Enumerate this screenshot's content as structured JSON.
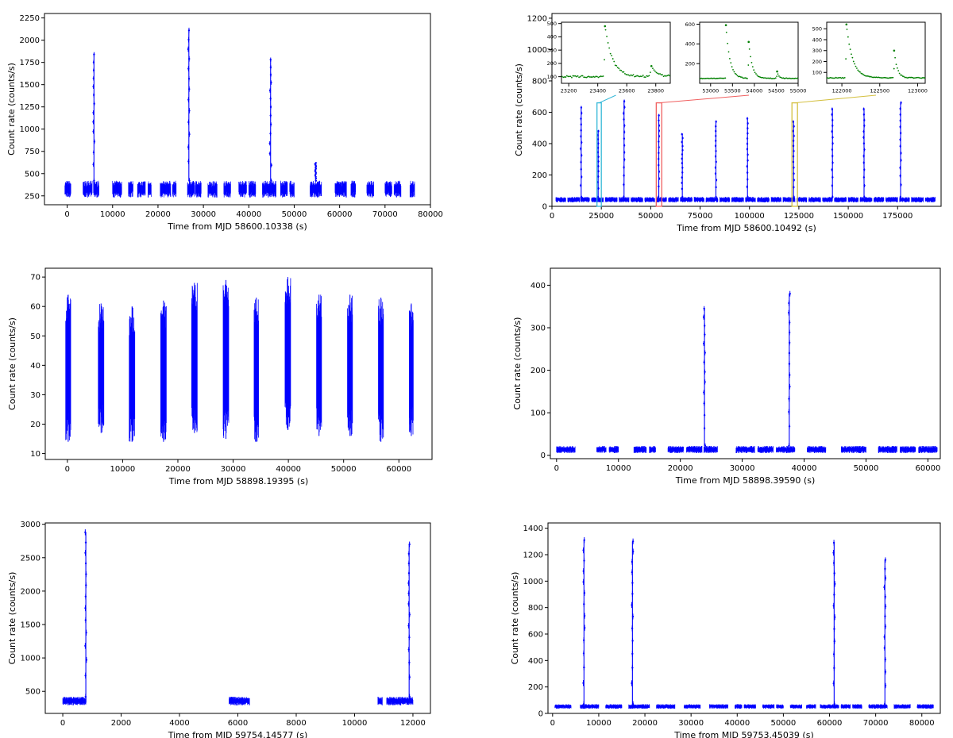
{
  "figure": {
    "panel_count": 6
  },
  "style": {
    "series_color": "#0000ff",
    "inset_color": "#008000",
    "axes_color": "#000000",
    "box_colors": [
      "#35b8d8",
      "#f06060",
      "#d4c040"
    ]
  },
  "chart_data": [
    {
      "id": "p1",
      "type": "scatter",
      "title": "",
      "xlabel": "Time from MJD 58600.10338 (s)",
      "ylabel": "Count rate (counts/s)",
      "xlim": [
        -5000,
        80000
      ],
      "ylim": [
        150,
        2300
      ],
      "xticks": [
        0,
        10000,
        20000,
        30000,
        40000,
        50000,
        60000,
        70000,
        80000
      ],
      "yticks": [
        250,
        500,
        750,
        1000,
        1250,
        1500,
        1750,
        2000,
        2250
      ],
      "segments": [
        [
          -500,
          800
        ],
        [
          3500,
          5500
        ],
        [
          5800,
          7000
        ],
        [
          10000,
          12000
        ],
        [
          13500,
          14500
        ],
        [
          15500,
          17200
        ],
        [
          17800,
          18500
        ],
        [
          20500,
          22800
        ],
        [
          23200,
          24000
        ],
        [
          26500,
          28000
        ],
        [
          28200,
          29500
        ],
        [
          31000,
          33000
        ],
        [
          34500,
          36000
        ],
        [
          37800,
          39500
        ],
        [
          40000,
          41500
        ],
        [
          43000,
          46000
        ],
        [
          47000,
          48500
        ],
        [
          49000,
          50000
        ],
        [
          53500,
          56000
        ],
        [
          59000,
          61500
        ],
        [
          62500,
          63500
        ],
        [
          66000,
          67500
        ],
        [
          70000,
          71500
        ],
        [
          72000,
          73500
        ],
        [
          75500,
          76500
        ]
      ],
      "base": {
        "low": 230,
        "high": 420
      },
      "flares": [
        {
          "t": 5900,
          "peak": 1840,
          "width": 500
        },
        {
          "t": 26800,
          "peak": 2110,
          "width": 500
        },
        {
          "t": 44800,
          "peak": 1780,
          "width": 600
        },
        {
          "t": 54700,
          "peak": 620,
          "width": 400
        }
      ]
    },
    {
      "id": "p2",
      "type": "scatter",
      "title": "",
      "xlabel": "Time from MJD 58600.10492 (s)",
      "ylabel": "Count rate (counts/s)",
      "xlim": [
        0,
        197000
      ],
      "ylim": [
        0,
        1230
      ],
      "xticks": [
        0,
        25000,
        50000,
        75000,
        100000,
        125000,
        150000,
        175000
      ],
      "yticks": [
        0,
        200,
        400,
        600,
        800,
        1000,
        1200
      ],
      "segments": [
        [
          2000,
          7000
        ],
        [
          8000,
          14000
        ],
        [
          14500,
          19000
        ],
        [
          20000,
          26000
        ],
        [
          27000,
          33000
        ],
        [
          34000,
          39000
        ],
        [
          40000,
          46000
        ],
        [
          47000,
          52000
        ],
        [
          53000,
          58000
        ],
        [
          59000,
          64000
        ],
        [
          65000,
          71000
        ],
        [
          72000,
          77000
        ],
        [
          78000,
          84000
        ],
        [
          85000,
          90000
        ],
        [
          91000,
          97000
        ],
        [
          98000,
          103000
        ],
        [
          104000,
          110000
        ],
        [
          111000,
          116000
        ],
        [
          117000,
          123000
        ],
        [
          124000,
          129000
        ],
        [
          130000,
          136000
        ],
        [
          137000,
          142000
        ],
        [
          143000,
          149000
        ],
        [
          150000,
          155000
        ],
        [
          156000,
          162000
        ],
        [
          163000,
          168000
        ],
        [
          169000,
          175000
        ],
        [
          176000,
          181000
        ],
        [
          182000,
          188000
        ],
        [
          189000,
          194000
        ]
      ],
      "base": {
        "low": 25,
        "high": 60
      },
      "flares": [
        {
          "t": 14800,
          "peak": 630,
          "width": 700
        },
        {
          "t": 23400,
          "peak": 480,
          "width": 600
        },
        {
          "t": 36500,
          "peak": 670,
          "width": 700
        },
        {
          "t": 54100,
          "peak": 580,
          "width": 700
        },
        {
          "t": 66000,
          "peak": 460,
          "width": 600
        },
        {
          "t": 83000,
          "peak": 540,
          "width": 600
        },
        {
          "t": 99000,
          "peak": 560,
          "width": 600
        },
        {
          "t": 122300,
          "peak": 540,
          "width": 700
        },
        {
          "t": 142000,
          "peak": 620,
          "width": 600
        },
        {
          "t": 158000,
          "peak": 620,
          "width": 600
        },
        {
          "t": 176500,
          "peak": 660,
          "width": 700
        }
      ],
      "highlight_boxes": [
        {
          "x": [
            22800,
            25000
          ],
          "y": [
            0,
            660
          ]
        },
        {
          "x": [
            52800,
            55600
          ],
          "y": [
            0,
            660
          ]
        },
        {
          "x": [
            121500,
            124300
          ],
          "y": [
            0,
            660
          ]
        }
      ],
      "insets": [
        {
          "xlim": [
            23150,
            23900
          ],
          "ylim": [
            50,
            510
          ],
          "xticks": [
            23200,
            23400,
            23600,
            23800
          ],
          "yticks": [
            100,
            200,
            300,
            400,
            500
          ],
          "base": 100,
          "flares": [
            {
              "t": 23450,
              "peak": 480,
              "decay": 50
            },
            {
              "t": 23770,
              "peak": 180,
              "decay": 40
            }
          ]
        },
        {
          "xlim": [
            52750,
            55000
          ],
          "ylim": [
            0,
            620
          ],
          "xticks": [
            53000,
            53500,
            54000,
            54500,
            55000
          ],
          "yticks": [
            200,
            400,
            600
          ],
          "base": 50,
          "flares": [
            {
              "t": 53350,
              "peak": 590,
              "decay": 90
            },
            {
              "t": 53870,
              "peak": 420,
              "decay": 80
            },
            {
              "t": 54520,
              "peak": 120,
              "decay": 40
            }
          ]
        },
        {
          "xlim": [
            121800,
            123100
          ],
          "ylim": [
            0,
            560
          ],
          "xticks": [
            122000,
            122500,
            123000
          ],
          "yticks": [
            100,
            200,
            300,
            400,
            500
          ],
          "base": 50,
          "flares": [
            {
              "t": 122060,
              "peak": 540,
              "decay": 80
            },
            {
              "t": 122690,
              "peak": 300,
              "decay": 40
            }
          ]
        }
      ]
    },
    {
      "id": "p3",
      "type": "scatter",
      "title": "",
      "xlabel": "Time from MJD 58898.19395 (s)",
      "ylabel": "Count rate (counts/s)",
      "xlim": [
        -4000,
        66000
      ],
      "ylim": [
        8,
        73
      ],
      "xticks": [
        0,
        10000,
        20000,
        30000,
        40000,
        50000,
        60000
      ],
      "yticks": [
        10,
        20,
        30,
        40,
        50,
        60,
        70
      ],
      "bands": [
        {
          "x": [
            -300,
            600
          ],
          "low": 14,
          "high": 64
        },
        {
          "x": [
            5600,
            6600
          ],
          "low": 17,
          "high": 61
        },
        {
          "x": [
            11200,
            12200
          ],
          "low": 14,
          "high": 60
        },
        {
          "x": [
            16900,
            17900
          ],
          "low": 14,
          "high": 62
        },
        {
          "x": [
            22500,
            23500
          ],
          "low": 17,
          "high": 68
        },
        {
          "x": [
            28200,
            29200
          ],
          "low": 15,
          "high": 69
        },
        {
          "x": [
            33800,
            34600
          ],
          "low": 14,
          "high": 63
        },
        {
          "x": [
            39400,
            40400
          ],
          "low": 18,
          "high": 70
        },
        {
          "x": [
            45100,
            46000
          ],
          "low": 16,
          "high": 64
        },
        {
          "x": [
            50700,
            51600
          ],
          "low": 16,
          "high": 64
        },
        {
          "x": [
            56300,
            57200
          ],
          "low": 14,
          "high": 63
        },
        {
          "x": [
            61900,
            62600
          ],
          "low": 16,
          "high": 61
        }
      ]
    },
    {
      "id": "p4",
      "type": "scatter",
      "title": "",
      "xlabel": "Time from MJD 58898.39590 (s)",
      "ylabel": "Count rate (counts/s)",
      "xlim": [
        -1000,
        62000
      ],
      "ylim": [
        -8,
        440
      ],
      "xticks": [
        0,
        10000,
        20000,
        30000,
        40000,
        50000,
        60000
      ],
      "yticks": [
        0,
        100,
        200,
        300,
        400
      ],
      "segments": [
        [
          0,
          3000
        ],
        [
          6500,
          8000
        ],
        [
          8500,
          10000
        ],
        [
          12500,
          14500
        ],
        [
          15000,
          16000
        ],
        [
          18000,
          20500
        ],
        [
          21000,
          23500
        ],
        [
          23800,
          26000
        ],
        [
          29000,
          32000
        ],
        [
          32500,
          35000
        ],
        [
          35500,
          38500
        ],
        [
          40500,
          43500
        ],
        [
          46000,
          50000
        ],
        [
          52000,
          55000
        ],
        [
          55500,
          58000
        ],
        [
          58500,
          61500
        ]
      ],
      "base": {
        "low": 5,
        "high": 22
      },
      "flares": [
        {
          "t": 23900,
          "peak": 345,
          "width": 400
        },
        {
          "t": 37600,
          "peak": 380,
          "width": 400
        }
      ]
    },
    {
      "id": "p5",
      "type": "scatter",
      "title": "",
      "xlabel": "Time from MJD 59754.14577 (s)",
      "ylabel": "Count rate (counts/s)",
      "xlim": [
        -600,
        12600
      ],
      "ylim": [
        170,
        3020
      ],
      "xticks": [
        0,
        2000,
        4000,
        6000,
        8000,
        10000,
        12000
      ],
      "yticks": [
        500,
        1000,
        1500,
        2000,
        2500,
        3000
      ],
      "segments": [
        [
          0,
          800
        ],
        [
          5700,
          6400
        ],
        [
          10800,
          10950
        ],
        [
          11100,
          12000
        ]
      ],
      "base": {
        "low": 290,
        "high": 420
      },
      "flares": [
        {
          "t": 790,
          "peak": 2880,
          "width": 70
        },
        {
          "t": 11870,
          "peak": 2700,
          "width": 70
        }
      ]
    },
    {
      "id": "p6",
      "type": "scatter",
      "title": "",
      "xlabel": "Time from MJD 59753.45039 (s)",
      "ylabel": "Count rate (counts/s)",
      "xlim": [
        -1000,
        84000
      ],
      "ylim": [
        0,
        1440
      ],
      "xticks": [
        0,
        10000,
        20000,
        30000,
        40000,
        50000,
        60000,
        70000,
        80000
      ],
      "yticks": [
        0,
        200,
        400,
        600,
        800,
        1000,
        1200,
        1400
      ],
      "segments": [
        [
          500,
          4000
        ],
        [
          6000,
          10000
        ],
        [
          11500,
          15000
        ],
        [
          16500,
          21000
        ],
        [
          22500,
          26500
        ],
        [
          28500,
          32000
        ],
        [
          34000,
          38000
        ],
        [
          39500,
          41000
        ],
        [
          41500,
          44000
        ],
        [
          45500,
          48000
        ],
        [
          48500,
          50000
        ],
        [
          51500,
          54000
        ],
        [
          55000,
          57000
        ],
        [
          58000,
          62000
        ],
        [
          62500,
          64500
        ],
        [
          65000,
          67000
        ],
        [
          68500,
          72500
        ],
        [
          74000,
          77500
        ],
        [
          79000,
          82500
        ]
      ],
      "base": {
        "low": 35,
        "high": 70
      },
      "flares": [
        {
          "t": 6800,
          "peak": 1310,
          "width": 500
        },
        {
          "t": 17300,
          "peak": 1300,
          "width": 500
        },
        {
          "t": 61000,
          "peak": 1290,
          "width": 500
        },
        {
          "t": 72000,
          "peak": 1160,
          "width": 500
        }
      ]
    }
  ]
}
